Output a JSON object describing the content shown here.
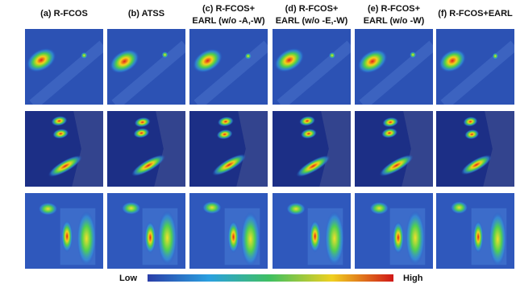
{
  "headers": [
    {
      "lines": [
        "(a) R-FCOS"
      ]
    },
    {
      "lines": [
        "(b) ATSS"
      ]
    },
    {
      "lines": [
        "(c) R-FCOS+",
        "EARL (w/o -A,-W)"
      ]
    },
    {
      "lines": [
        "(d) R-FCOS+",
        "EARL (w/o -E,-W)"
      ]
    },
    {
      "lines": [
        "(e) R-FCOS+",
        "EARL (w/o -W)"
      ]
    },
    {
      "lines": [
        "(f) R-FCOS+EARL"
      ]
    }
  ],
  "colorbar": {
    "low": "Low",
    "high": "High"
  }
}
